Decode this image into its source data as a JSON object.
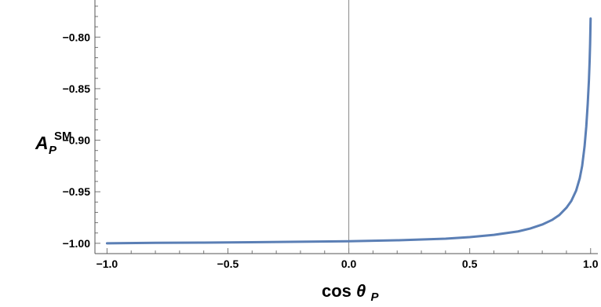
{
  "chart_data": {
    "type": "line",
    "title": "",
    "xlabel": {
      "base": "cos",
      "symbol": "θ",
      "subscript": "P"
    },
    "ylabel": {
      "base": "A",
      "superscript": "SM",
      "subscript": "P"
    },
    "xlim": [
      -1.05,
      1.03
    ],
    "ylim": [
      -1.01,
      -0.764
    ],
    "xticks": [
      -1.0,
      -0.5,
      0.0,
      0.5,
      1.0
    ],
    "xtick_labels": [
      "−1.0",
      "−0.5",
      "0.0",
      "0.5",
      "1.0"
    ],
    "yticks": [
      -1.0,
      -0.95,
      -0.9,
      -0.85,
      -0.8
    ],
    "ytick_labels": [
      "−1.00",
      "−0.95",
      "−0.90",
      "−0.85",
      "−0.80"
    ],
    "grid": false,
    "series": [
      {
        "color": "#5b7fb5",
        "x": [
          -1.0,
          -0.8,
          -0.6,
          -0.4,
          -0.2,
          0.0,
          0.2,
          0.4,
          0.5,
          0.6,
          0.7,
          0.75,
          0.8,
          0.84,
          0.87,
          0.9,
          0.92,
          0.94,
          0.955,
          0.965,
          0.975,
          0.982,
          0.988,
          0.993,
          0.996,
          0.998,
          1.0
        ],
        "y": [
          -1.0,
          -0.9995,
          -0.9993,
          -0.999,
          -0.9985,
          -0.998,
          -0.9971,
          -0.9955,
          -0.994,
          -0.9918,
          -0.9885,
          -0.9857,
          -0.9818,
          -0.9774,
          -0.9727,
          -0.9655,
          -0.959,
          -0.949,
          -0.937,
          -0.925,
          -0.906,
          -0.887,
          -0.865,
          -0.842,
          -0.823,
          -0.806,
          -0.782
        ]
      }
    ]
  }
}
